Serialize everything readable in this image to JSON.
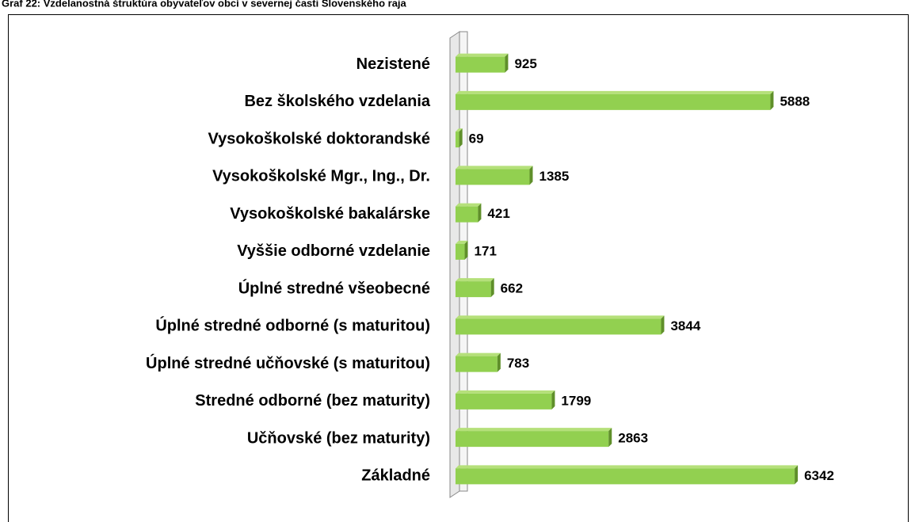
{
  "chart_data": {
    "type": "bar",
    "orientation": "horizontal",
    "title": "Graf 22: Vzdelanostná štruktúra obyvateľov obcí v severnej časti Slovenského raja",
    "categories": [
      "Nezistené",
      "Bez školského vzdelania",
      "Vysokoškolské doktorandské",
      "Vysokoškolské Mgr., Ing., Dr.",
      "Vysokoškolské bakalárske",
      "Vyššie odborné vzdelanie",
      "Úplné stredné všeobecné",
      "Úplné stredné odborné (s maturitou)",
      "Úplné stredné učňovské (s maturitou)",
      "Stredné odborné (bez maturity)",
      "Učňovské (bez maturity)",
      "Základné"
    ],
    "values": [
      925,
      5888,
      69,
      1385,
      421,
      171,
      662,
      3844,
      783,
      1799,
      2863,
      6342
    ],
    "color": "#92d050",
    "xlim": [
      0,
      8000
    ]
  }
}
